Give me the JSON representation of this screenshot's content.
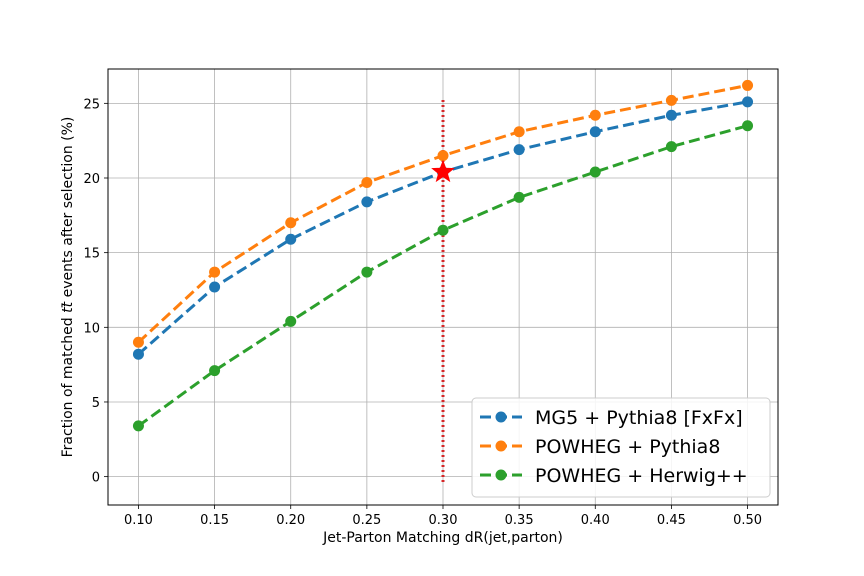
{
  "chart_data": {
    "type": "line",
    "xlabel": "Jet-Parton Matching dR(jet,parton)",
    "ylabel_parts": [
      "Fraction of matched ",
      "t",
      "t",
      "̄",
      " events after selection (%)"
    ],
    "x": [
      0.1,
      0.15,
      0.2,
      0.25,
      0.3,
      0.35,
      0.4,
      0.45,
      0.5
    ],
    "xticks": [
      "0.10",
      "0.15",
      "0.20",
      "0.25",
      "0.30",
      "0.35",
      "0.40",
      "0.45",
      "0.50"
    ],
    "yticks": [
      "0",
      "5",
      "10",
      "15",
      "20",
      "25"
    ],
    "ytick_values": [
      0,
      5,
      10,
      15,
      20,
      25
    ],
    "xlim": [
      0.08,
      0.52
    ],
    "ylim": [
      -1.9,
      27.3
    ],
    "grid": true,
    "legend_position": "bottom-right",
    "series": [
      {
        "name": "MG5 + Pythia8 [FxFx]",
        "color": "#1f77b4",
        "values": [
          8.2,
          12.7,
          15.9,
          18.4,
          20.4,
          21.9,
          23.1,
          24.2,
          25.1
        ]
      },
      {
        "name": "POWHEG + Pythia8",
        "color": "#ff7f0e",
        "values": [
          9.0,
          13.7,
          17.0,
          19.7,
          21.5,
          23.1,
          24.2,
          25.2,
          26.2
        ]
      },
      {
        "name": "POWHEG + Herwig++",
        "color": "#2ca02c",
        "values": [
          3.4,
          7.1,
          10.4,
          13.7,
          16.5,
          18.7,
          20.4,
          22.1,
          23.5
        ]
      }
    ],
    "annotations": {
      "vline": {
        "x": 0.3,
        "color": "#d62728",
        "style": "dotted"
      },
      "star": {
        "x": 0.3,
        "y": 20.4,
        "color": "#ff0000"
      }
    }
  }
}
